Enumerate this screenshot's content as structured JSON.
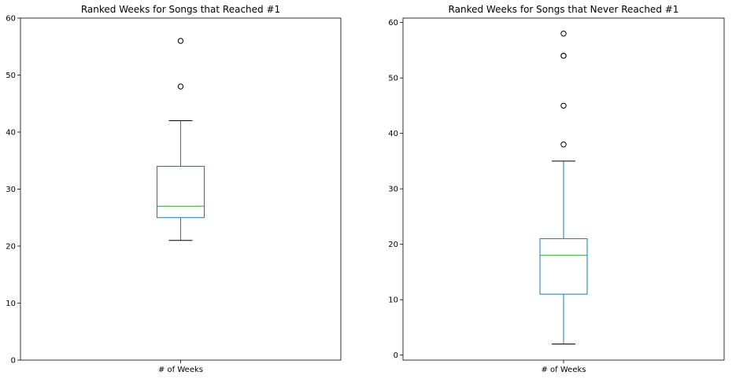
{
  "chart_data": [
    {
      "type": "box",
      "title": "Ranked Weeks for Songs that Reached #1",
      "categories": [
        "# of Weeks"
      ],
      "ylim": [
        0,
        60
      ],
      "yticks": [
        0,
        10,
        20,
        30,
        40,
        50,
        60
      ],
      "box": {
        "whisker_low": 21,
        "q1": 25,
        "median": 27,
        "q3": 34,
        "whisker_high": 42
      },
      "outliers": [
        48,
        56
      ],
      "grid": false,
      "colors": {
        "box": "#1f77b4",
        "median": "#2ca02c",
        "whisker": "#1f77b4",
        "cap": "#000000",
        "outlier": "#000000"
      }
    },
    {
      "type": "box",
      "title": "Ranked Weeks for Songs that Never Reached #1",
      "categories": [
        "# of Weeks"
      ],
      "ylim": [
        -0.9,
        60.8
      ],
      "yticks": [
        0,
        10,
        20,
        30,
        40,
        50,
        60
      ],
      "box": {
        "whisker_low": 2,
        "q1": 11,
        "median": 18,
        "q3": 21,
        "whisker_high": 35
      },
      "outliers": [
        38,
        45,
        54,
        54,
        58
      ],
      "grid": false,
      "colors": {
        "box": "#1f77b4",
        "median": "#2ca02c",
        "whisker": "#1f77b4",
        "cap": "#000000",
        "outlier": "#000000"
      }
    }
  ]
}
